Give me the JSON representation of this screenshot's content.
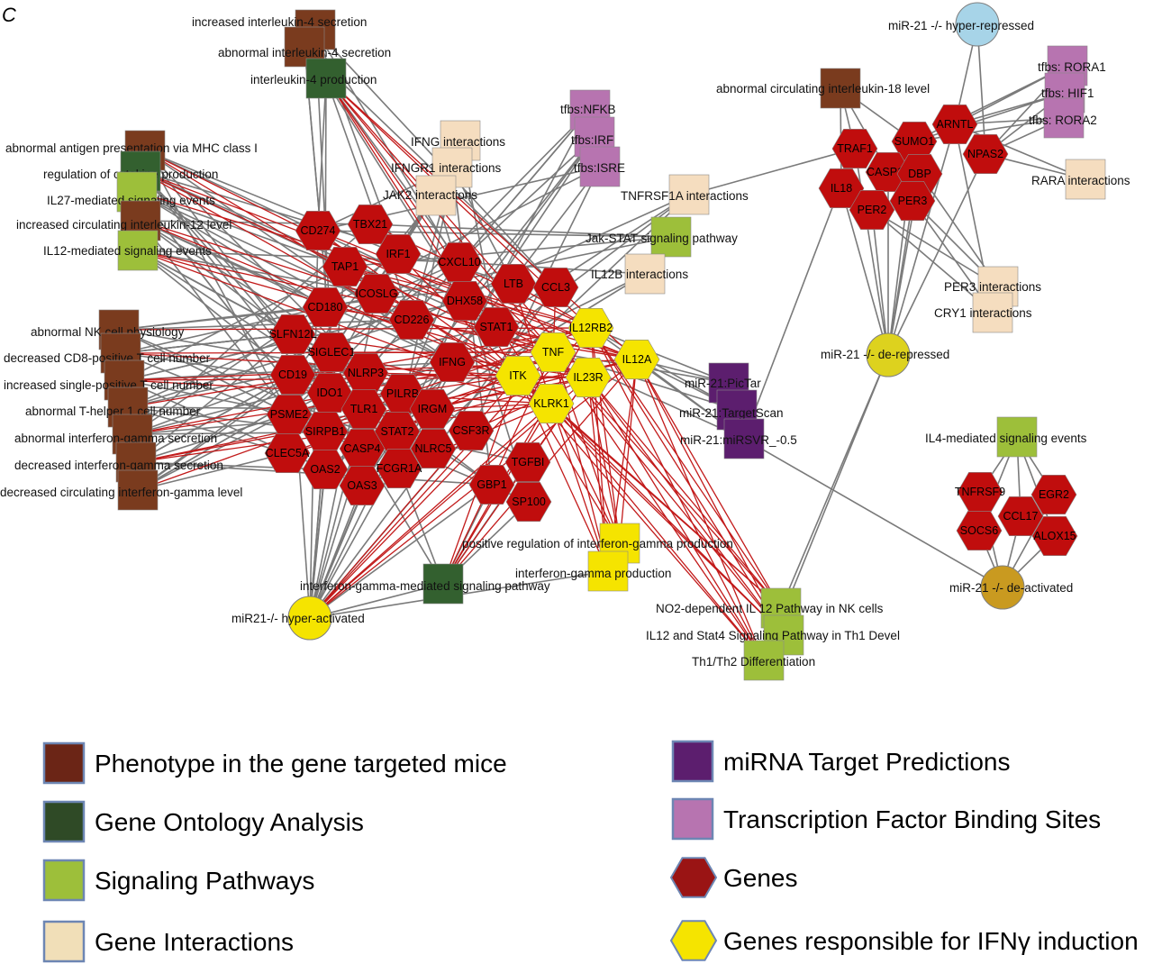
{
  "panel_label": "C",
  "colors": {
    "phenotype": "#7a3b1e",
    "go": "#33602f",
    "pathway": "#9dbf3a",
    "interaction": "#f5ddbf",
    "mirna": "#5c1e6e",
    "tfbs": "#b774b0",
    "gene": "#c00d0d",
    "ifn_gene": "#f5e400",
    "mir_hyper_repressed": "#a7d4e8",
    "mir_de_repressed": "#ddd21e",
    "mir_de_activated": "#c99a20",
    "mir_hyper_activated": "#f5e400",
    "edge_gray": "#7a7a7a",
    "edge_red": "#c21a1a"
  },
  "legend": [
    {
      "label": "Phenotype in the gene targeted mice",
      "shape": "square",
      "color": "#6b2516"
    },
    {
      "label": "Gene Ontology Analysis",
      "shape": "square",
      "color": "#2f4a26"
    },
    {
      "label": "Signaling Pathways",
      "shape": "square",
      "color": "#9dbf3a"
    },
    {
      "label": "Gene Interactions",
      "shape": "square",
      "color": "#f1dfb8"
    },
    {
      "label": "miRNA Target Predictions",
      "shape": "square",
      "color": "#5c1e6e"
    },
    {
      "label": "Transcription Factor Binding Sites",
      "shape": "square",
      "color": "#b774b0"
    },
    {
      "label": "Genes",
      "shape": "hexagon",
      "color": "#9a1414"
    },
    {
      "label": "Genes responsible for IFNγ induction",
      "shape": "hexagon",
      "color": "#f5e400"
    }
  ],
  "nodes": [
    {
      "id": "p1",
      "type": "phenotype",
      "label": "increased interleukin-4 secretion"
    },
    {
      "id": "p2",
      "type": "phenotype",
      "label": "abnormal interleukin-4 secretion"
    },
    {
      "id": "go1",
      "type": "go",
      "label": "interleukin-4 production"
    },
    {
      "id": "p3",
      "type": "phenotype",
      "label": "abnormal antigen presentation via MHC class I"
    },
    {
      "id": "go2",
      "type": "go",
      "label": "regulation of cytokine production"
    },
    {
      "id": "pw1",
      "type": "pathway",
      "label": "IL27-mediated signaling events"
    },
    {
      "id": "p4",
      "type": "phenotype",
      "label": "increased circulating interleukin-12 level"
    },
    {
      "id": "pw2",
      "type": "pathway",
      "label": "IL12-mediated signaling events"
    },
    {
      "id": "p5",
      "type": "phenotype",
      "label": "abnormal NK cell physiology"
    },
    {
      "id": "p6",
      "type": "phenotype",
      "label": "decreased CD8-positive T cell number"
    },
    {
      "id": "p7",
      "type": "phenotype",
      "label": "increased single-positive T cell number"
    },
    {
      "id": "p8",
      "type": "phenotype",
      "label": "abnormal T-helper 1 cell number"
    },
    {
      "id": "p9",
      "type": "phenotype",
      "label": "abnormal interferon-gamma secretion"
    },
    {
      "id": "p10",
      "type": "phenotype",
      "label": "decreased interferon-gamma secretion"
    },
    {
      "id": "p11",
      "type": "phenotype",
      "label": "decreased circulating interferon-gamma level"
    },
    {
      "id": "gi1",
      "type": "interaction",
      "label": "IFNG interactions"
    },
    {
      "id": "gi2",
      "type": "interaction",
      "label": "IFNGR1 interactions"
    },
    {
      "id": "gi3",
      "type": "interaction",
      "label": "JAK2 interactions"
    },
    {
      "id": "tf1",
      "type": "tfbs",
      "label": "tfbs:NFKB"
    },
    {
      "id": "tf2",
      "type": "tfbs",
      "label": "tfbs:IRF"
    },
    {
      "id": "tf3",
      "type": "tfbs",
      "label": "tfbs:ISRE"
    },
    {
      "id": "gi4",
      "type": "interaction",
      "label": "TNFRSF1A interactions"
    },
    {
      "id": "pw3",
      "type": "pathway",
      "label": "Jak-STAT signaling pathway"
    },
    {
      "id": "gi5",
      "type": "interaction",
      "label": "IL12B interactions"
    },
    {
      "id": "mi1",
      "type": "mirna",
      "label": "miR-21:PicTar"
    },
    {
      "id": "mi2",
      "type": "mirna",
      "label": "miR-21:TargetScan"
    },
    {
      "id": "mi3",
      "type": "mirna",
      "label": "miR-21:miRSVR_-0.5"
    },
    {
      "id": "ifg1",
      "type": "ifn_sq",
      "label": "positive regulation of interferon-gamma production"
    },
    {
      "id": "ifg2",
      "type": "ifn_sq",
      "label": "interferon-gamma production"
    },
    {
      "id": "go3",
      "type": "go",
      "label": "interferon-gamma-mediated signaling pathway"
    },
    {
      "id": "pw4",
      "type": "pathway",
      "label": "NO2-dependent IL 12 Pathway in NK cells"
    },
    {
      "id": "pw5",
      "type": "pathway",
      "label": "IL12 and Stat4 Signaling Pathway in Th1 Devel"
    },
    {
      "id": "pw6",
      "type": "pathway",
      "label": "Th1/Th2 Differentiation"
    },
    {
      "id": "m1",
      "type": "mir_hyper_repressed",
      "label": "miR-21 -/- hyper-repressed"
    },
    {
      "id": "p12",
      "type": "phenotype",
      "label": "abnormal circulating interleukin-18 level"
    },
    {
      "id": "tf4",
      "type": "tfbs",
      "label": "tfbs: RORA1"
    },
    {
      "id": "tf5",
      "type": "tfbs",
      "label": "tfbs: HIF1"
    },
    {
      "id": "tf6",
      "type": "tfbs",
      "label": "tfbs: RORA2"
    },
    {
      "id": "gi6",
      "type": "interaction",
      "label": "RARA interactions"
    },
    {
      "id": "gi7",
      "type": "interaction",
      "label": "PER3 interactions"
    },
    {
      "id": "gi8",
      "type": "interaction",
      "label": "CRY1 interactions"
    },
    {
      "id": "m2",
      "type": "mir_de_repressed",
      "label": "miR-21 -/- de-repressed"
    },
    {
      "id": "pw7",
      "type": "pathway",
      "label": "IL4-mediated signaling events"
    },
    {
      "id": "m3",
      "type": "mir_de_activated",
      "label": "miR-21 -/- de-activated"
    },
    {
      "id": "m4",
      "type": "mir_hyper_activated",
      "label": "miR21-/- hyper-activated"
    }
  ],
  "genes": [
    {
      "id": "CD274",
      "label": "CD274",
      "kind": "gene"
    },
    {
      "id": "TBX21",
      "label": "TBX21",
      "kind": "gene"
    },
    {
      "id": "TAP1",
      "label": "TAP1",
      "kind": "gene"
    },
    {
      "id": "IRF1",
      "label": "IRF1",
      "kind": "gene"
    },
    {
      "id": "CXCL10",
      "label": "CXCL10",
      "kind": "gene"
    },
    {
      "id": "CD180",
      "label": "CD180",
      "kind": "gene"
    },
    {
      "id": "ICOSLG",
      "label": "ICOSLG",
      "kind": "gene"
    },
    {
      "id": "CD226",
      "label": "CD226",
      "kind": "gene"
    },
    {
      "id": "DHX58",
      "label": "DHX58",
      "kind": "gene"
    },
    {
      "id": "LTB",
      "label": "LTB",
      "kind": "gene"
    },
    {
      "id": "CCL3",
      "label": "CCL3",
      "kind": "gene"
    },
    {
      "id": "SLFN12L",
      "label": "SLFN12L",
      "kind": "gene"
    },
    {
      "id": "SIGLEC1",
      "label": "SIGLEC1",
      "kind": "gene"
    },
    {
      "id": "STAT1",
      "label": "STAT1",
      "kind": "gene"
    },
    {
      "id": "CD19",
      "label": "CD19",
      "kind": "gene"
    },
    {
      "id": "NLRP3",
      "label": "NLRP3",
      "kind": "gene"
    },
    {
      "id": "IFNG",
      "label": "IFNG",
      "kind": "gene"
    },
    {
      "id": "IDO1",
      "label": "IDO1",
      "kind": "gene"
    },
    {
      "id": "PILRB",
      "label": "PILRB",
      "kind": "gene"
    },
    {
      "id": "PSME2",
      "label": "PSME2",
      "kind": "gene"
    },
    {
      "id": "TLR1",
      "label": "TLR1",
      "kind": "gene"
    },
    {
      "id": "IRGM",
      "label": "IRGM",
      "kind": "gene"
    },
    {
      "id": "SIRPB1",
      "label": "SIRPB1",
      "kind": "gene"
    },
    {
      "id": "STAT2",
      "label": "STAT2",
      "kind": "gene"
    },
    {
      "id": "CSF3R",
      "label": "CSF3R",
      "kind": "gene"
    },
    {
      "id": "CLEC5A",
      "label": "CLEC5A",
      "kind": "gene"
    },
    {
      "id": "CASP4",
      "label": "CASP4",
      "kind": "gene"
    },
    {
      "id": "NLRC5",
      "label": "NLRC5",
      "kind": "gene"
    },
    {
      "id": "OAS2",
      "label": "OAS2",
      "kind": "gene"
    },
    {
      "id": "FCGR1A",
      "label": "FCGR1A",
      "kind": "gene"
    },
    {
      "id": "OAS3",
      "label": "OAS3",
      "kind": "gene"
    },
    {
      "id": "TGFBI",
      "label": "TGFBI",
      "kind": "gene"
    },
    {
      "id": "GBP1",
      "label": "GBP1",
      "kind": "gene"
    },
    {
      "id": "SP100",
      "label": "SP100",
      "kind": "gene"
    },
    {
      "id": "IL12RB2",
      "label": "IL12RB2",
      "kind": "ifn"
    },
    {
      "id": "TNF",
      "label": "TNF",
      "kind": "ifn"
    },
    {
      "id": "IL12A",
      "label": "IL12A",
      "kind": "ifn"
    },
    {
      "id": "ITK",
      "label": "ITK",
      "kind": "ifn"
    },
    {
      "id": "IL23R",
      "label": "IL23R",
      "kind": "ifn"
    },
    {
      "id": "KLRK1",
      "label": "KLRK1",
      "kind": "ifn"
    },
    {
      "id": "TRAF1",
      "label": "TRAF1",
      "kind": "gene"
    },
    {
      "id": "SUMO1",
      "label": "SUMO1",
      "kind": "gene"
    },
    {
      "id": "ARNTL",
      "label": "ARNTL",
      "kind": "gene"
    },
    {
      "id": "CASP12",
      "label": "CASP12",
      "kind": "gene"
    },
    {
      "id": "NPAS2",
      "label": "NPAS2",
      "kind": "gene"
    },
    {
      "id": "IL18",
      "label": "IL18",
      "kind": "gene"
    },
    {
      "id": "DBP",
      "label": "DBP",
      "kind": "gene"
    },
    {
      "id": "PER2",
      "label": "PER2",
      "kind": "gene"
    },
    {
      "id": "PER3",
      "label": "PER3",
      "kind": "gene"
    },
    {
      "id": "TNFRSF9",
      "label": "TNFRSF9",
      "kind": "gene"
    },
    {
      "id": "EGR2",
      "label": "EGR2",
      "kind": "gene"
    },
    {
      "id": "CCL17",
      "label": "CCL17",
      "kind": "gene"
    },
    {
      "id": "SOCS6",
      "label": "SOCS6",
      "kind": "gene"
    },
    {
      "id": "ALOX15",
      "label": "ALOX15",
      "kind": "gene"
    }
  ]
}
